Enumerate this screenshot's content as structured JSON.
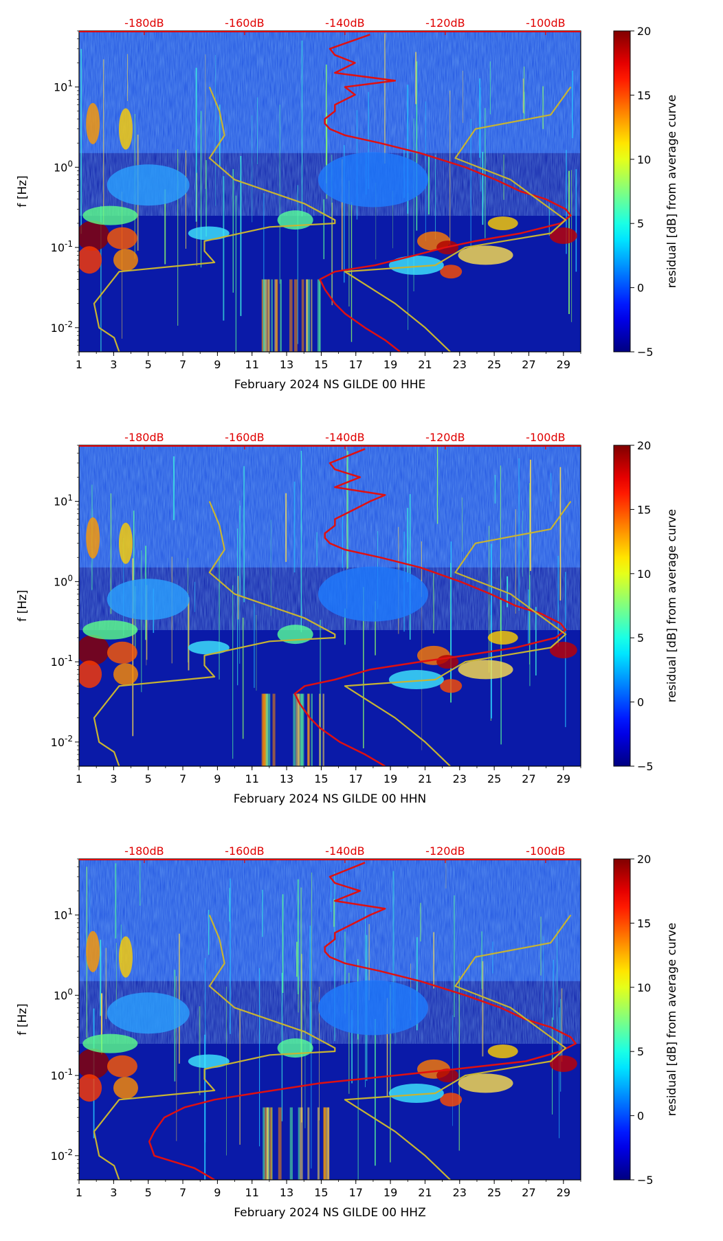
{
  "chart_data": [
    {
      "type": "heatmap",
      "xlabel": "February 2024 NS GILDE 00 HHE",
      "ylabel": "f [Hz]",
      "x_ticks": [
        "1",
        "3",
        "5",
        "7",
        "9",
        "11",
        "13",
        "15",
        "17",
        "19",
        "21",
        "23",
        "25",
        "27",
        "29"
      ],
      "xlim": [
        1,
        30
      ],
      "y_ticks": [
        "10^-2",
        "10^-1",
        "10^0",
        "10^1"
      ],
      "ylim_hz": [
        0.005,
        50
      ],
      "y_scale": "log",
      "db_labels": [
        "-180dB",
        "-160dB",
        "-140dB",
        "-120dB",
        "-100dB"
      ],
      "db_axis_range": [
        -193,
        -93
      ],
      "colorbar": {
        "label": "residual [dB] from average curve",
        "ticks": [
          "20",
          "15",
          "10",
          "5",
          "0",
          "−5"
        ],
        "range": [
          -5,
          20
        ],
        "colormap": "jet"
      },
      "series": [
        {
          "color": "#e01010",
          "f_hz": [
            45,
            30,
            25,
            20,
            15,
            12,
            10,
            8,
            6,
            5,
            4,
            3.5,
            3,
            2.5,
            2,
            1.5,
            1,
            0.7,
            0.5,
            0.4,
            0.3,
            0.25,
            0.2,
            0.15,
            0.12,
            0.1,
            0.08,
            0.06,
            0.05,
            0.04,
            0.03,
            0.02,
            0.015,
            0.01,
            0.007,
            0.005
          ],
          "db": [
            -135,
            -143,
            -142,
            -138,
            -142,
            -130,
            -140,
            -138,
            -142,
            -142,
            -144,
            -144,
            -143,
            -140,
            -133,
            -125,
            -116,
            -110,
            -105,
            -100,
            -96,
            -95,
            -97,
            -105,
            -114,
            -120,
            -126,
            -134,
            -142,
            -145,
            -144,
            -142,
            -140,
            -136,
            -132,
            -129
          ]
        },
        {
          "color": "#c8b432",
          "f_hz": [
            10,
            5,
            2.5,
            1.3,
            0.7,
            0.35,
            0.22,
            0.2,
            0.18,
            0.12,
            0.09,
            0.065,
            0.05,
            0.02,
            0.01,
            0.0075,
            0.005
          ],
          "db": [
            -167,
            -165,
            -164,
            -167,
            -162,
            -148,
            -142,
            -142,
            -155,
            -168,
            -168,
            -166,
            -185,
            -190,
            -189,
            -186,
            -185
          ]
        },
        {
          "color": "#c8b432",
          "f_hz": [
            10,
            4.5,
            3,
            1.3,
            0.7,
            0.22,
            0.15,
            0.1,
            0.06,
            0.05,
            0.02,
            0.01,
            0.005
          ],
          "db": [
            -95,
            -99,
            -114,
            -118,
            -107,
            -96,
            -99,
            -116,
            -122,
            -140,
            -130,
            -124,
            -119
          ]
        }
      ]
    },
    {
      "type": "heatmap",
      "xlabel": "February 2024 NS GILDE 00 HHN",
      "ylabel": "f [Hz]",
      "x_ticks": [
        "1",
        "3",
        "5",
        "7",
        "9",
        "11",
        "13",
        "15",
        "17",
        "19",
        "21",
        "23",
        "25",
        "27",
        "29"
      ],
      "xlim": [
        1,
        30
      ],
      "y_ticks": [
        "10^-2",
        "10^-1",
        "10^0",
        "10^1"
      ],
      "ylim_hz": [
        0.005,
        50
      ],
      "y_scale": "log",
      "db_labels": [
        "-180dB",
        "-160dB",
        "-140dB",
        "-120dB",
        "-100dB"
      ],
      "db_axis_range": [
        -193,
        -93
      ],
      "colorbar": {
        "label": "residual [dB] from average curve",
        "ticks": [
          "20",
          "15",
          "10",
          "5",
          "0",
          "−5"
        ],
        "range": [
          -5,
          20
        ],
        "colormap": "jet"
      },
      "series": [
        {
          "color": "#e01010",
          "f_hz": [
            45,
            30,
            25,
            20,
            15,
            12,
            10,
            8,
            6,
            5,
            4,
            3.5,
            3,
            2.5,
            2,
            1.5,
            1,
            0.7,
            0.5,
            0.4,
            0.3,
            0.25,
            0.2,
            0.15,
            0.12,
            0.1,
            0.08,
            0.06,
            0.05,
            0.04,
            0.03,
            0.02,
            0.015,
            0.01,
            0.007,
            0.005
          ],
          "db": [
            -136,
            -143,
            -142,
            -137,
            -142,
            -132,
            -135,
            -138,
            -142,
            -142,
            -144,
            -144,
            -143,
            -140,
            -133,
            -125,
            -117,
            -111,
            -106,
            -101,
            -97,
            -96,
            -98,
            -106,
            -116,
            -125,
            -135,
            -142,
            -148,
            -150,
            -149,
            -147,
            -145,
            -141,
            -136,
            -132
          ]
        },
        {
          "color": "#c8b432",
          "f_hz": [
            10,
            5,
            2.5,
            1.3,
            0.7,
            0.35,
            0.22,
            0.2,
            0.18,
            0.12,
            0.09,
            0.065,
            0.05,
            0.02,
            0.01,
            0.0075,
            0.005
          ],
          "db": [
            -167,
            -165,
            -164,
            -167,
            -162,
            -148,
            -142,
            -142,
            -155,
            -168,
            -168,
            -166,
            -185,
            -190,
            -189,
            -186,
            -185
          ]
        },
        {
          "color": "#c8b432",
          "f_hz": [
            10,
            4.5,
            3,
            1.3,
            0.7,
            0.22,
            0.15,
            0.1,
            0.06,
            0.05,
            0.02,
            0.01,
            0.005
          ],
          "db": [
            -95,
            -99,
            -114,
            -118,
            -107,
            -96,
            -99,
            -116,
            -122,
            -140,
            -130,
            -124,
            -119
          ]
        }
      ]
    },
    {
      "type": "heatmap",
      "xlabel": "February 2024 NS GILDE 00 HHZ",
      "ylabel": "f [Hz]",
      "x_ticks": [
        "1",
        "3",
        "5",
        "7",
        "9",
        "11",
        "13",
        "15",
        "17",
        "19",
        "21",
        "23",
        "25",
        "27",
        "29"
      ],
      "xlim": [
        1,
        30
      ],
      "y_ticks": [
        "10^-2",
        "10^-1",
        "10^0",
        "10^1"
      ],
      "ylim_hz": [
        0.005,
        50
      ],
      "y_scale": "log",
      "db_labels": [
        "-180dB",
        "-160dB",
        "-140dB",
        "-120dB",
        "-100dB"
      ],
      "db_axis_range": [
        -193,
        -93
      ],
      "colorbar": {
        "label": "residual [dB] from average curve",
        "ticks": [
          "20",
          "15",
          "10",
          "5",
          "0",
          "−5"
        ],
        "range": [
          -5,
          20
        ],
        "colormap": "jet"
      },
      "series": [
        {
          "color": "#e01010",
          "f_hz": [
            45,
            30,
            25,
            20,
            15,
            12,
            10,
            8,
            6,
            5,
            4,
            3.5,
            3,
            2.5,
            2,
            1.5,
            1,
            0.7,
            0.5,
            0.4,
            0.3,
            0.25,
            0.2,
            0.15,
            0.12,
            0.1,
            0.08,
            0.06,
            0.05,
            0.04,
            0.03,
            0.02,
            0.015,
            0.01,
            0.007,
            0.005
          ],
          "db": [
            -136,
            -143,
            -142,
            -137,
            -142,
            -132,
            -135,
            -138,
            -142,
            -142,
            -144,
            -144,
            -143,
            -140,
            -133,
            -125,
            -116,
            -109,
            -104,
            -99,
            -95,
            -94,
            -97,
            -104,
            -118,
            -130,
            -145,
            -158,
            -166,
            -172,
            -176,
            -178,
            -179,
            -178,
            -170,
            -166
          ]
        },
        {
          "color": "#c8b432",
          "f_hz": [
            10,
            5,
            2.5,
            1.3,
            0.7,
            0.35,
            0.22,
            0.2,
            0.18,
            0.12,
            0.09,
            0.065,
            0.05,
            0.02,
            0.01,
            0.0075,
            0.005
          ],
          "db": [
            -167,
            -165,
            -164,
            -167,
            -162,
            -148,
            -142,
            -142,
            -155,
            -168,
            -168,
            -166,
            -185,
            -190,
            -189,
            -186,
            -185
          ]
        },
        {
          "color": "#c8b432",
          "f_hz": [
            10,
            4.5,
            3,
            1.3,
            0.7,
            0.22,
            0.15,
            0.1,
            0.06,
            0.05,
            0.02,
            0.01,
            0.005
          ],
          "db": [
            -95,
            -99,
            -114,
            -118,
            -107,
            -96,
            -99,
            -116,
            -122,
            -140,
            -130,
            -124,
            -119
          ]
        }
      ]
    }
  ]
}
